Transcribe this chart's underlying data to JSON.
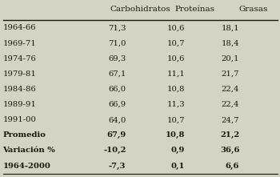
{
  "headers": [
    "",
    "Carbohidratos",
    "Proteínas",
    "Grasas"
  ],
  "rows": [
    [
      "1964-66",
      "71,3",
      "10,6",
      "18,1"
    ],
    [
      "1969-71",
      "71,0",
      "10,7",
      "18,4"
    ],
    [
      "1974-76",
      "69,3",
      "10,6",
      "20,1"
    ],
    [
      "1979-81",
      "67,1",
      "11,1",
      "21,7"
    ],
    [
      "1984-86",
      "66,0",
      "10,8",
      "22,4"
    ],
    [
      "1989-91",
      "66,9",
      "11,3",
      "22,4"
    ],
    [
      "1991-00",
      "64,0",
      "10,7",
      "24,7"
    ],
    [
      "Promedio",
      "67,9",
      "10,8",
      "21,2"
    ],
    [
      "Variación %",
      "-10,2",
      "0,9",
      "36,6"
    ],
    [
      "1964-2000",
      "-7,3",
      "0,1",
      "6,6"
    ]
  ],
  "bold_rows": [
    7,
    8,
    9
  ],
  "background_color": "#d4d4c4",
  "text_color": "#1a1a0a",
  "figsize": [
    3.5,
    2.21
  ],
  "dpi": 100,
  "fontsize": 7.2,
  "header_fontsize": 7.5
}
